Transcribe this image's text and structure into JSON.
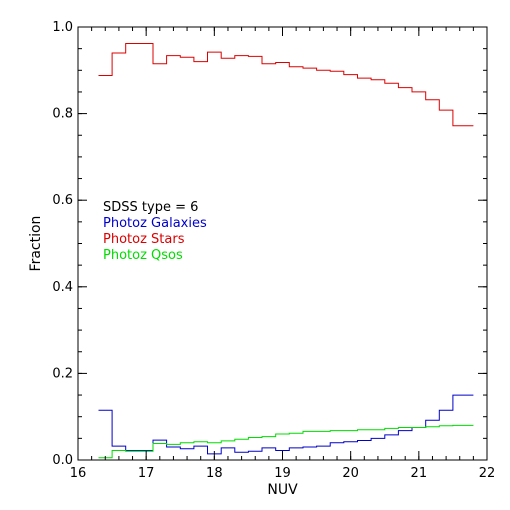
{
  "chart_data": {
    "type": "line",
    "step": true,
    "xlabel": "NUV",
    "ylabel": "Fraction",
    "xlim": [
      16,
      22
    ],
    "ylim": [
      0,
      1
    ],
    "x_ticks": [
      16,
      17,
      18,
      19,
      20,
      21,
      22
    ],
    "x_tick_labels": [
      "16",
      "17",
      "18",
      "19",
      "20",
      "21",
      "22"
    ],
    "y_ticks": [
      0,
      0.2,
      0.4,
      0.6,
      0.8,
      1.0
    ],
    "y_tick_labels": [
      "0.0",
      "0.2",
      "0.4",
      "0.6",
      "0.8",
      "1.0"
    ],
    "bin_edges": [
      16.3,
      16.5,
      16.7,
      16.9,
      17.1,
      17.3,
      17.5,
      17.7,
      17.9,
      18.1,
      18.3,
      18.5,
      18.7,
      18.9,
      19.1,
      19.3,
      19.5,
      19.7,
      19.9,
      20.1,
      20.3,
      20.5,
      20.7,
      20.9,
      21.1,
      21.3,
      21.5,
      21.7,
      21.8
    ],
    "legend_title": "SDSS type = 6",
    "legend_position": "left",
    "series": [
      {
        "name": "Photoz Galaxies",
        "color": "#0000cc",
        "values": [
          0.115,
          0.032,
          0.022,
          0.022,
          0.046,
          0.03,
          0.026,
          0.032,
          0.014,
          0.028,
          0.018,
          0.02,
          0.028,
          0.022,
          0.028,
          0.03,
          0.032,
          0.04,
          0.042,
          0.045,
          0.05,
          0.058,
          0.068,
          0.075,
          0.092,
          0.115,
          0.15,
          0.15
        ]
      },
      {
        "name": "Photoz Stars",
        "color": "#dd0000",
        "values": [
          0.888,
          0.94,
          0.962,
          0.962,
          0.915,
          0.934,
          0.93,
          0.92,
          0.942,
          0.928,
          0.934,
          0.932,
          0.915,
          0.918,
          0.908,
          0.905,
          0.9,
          0.898,
          0.89,
          0.882,
          0.878,
          0.87,
          0.86,
          0.85,
          0.832,
          0.808,
          0.772,
          0.772
        ]
      },
      {
        "name": "Photoz Qsos",
        "color": "#00dd00",
        "values": [
          0.005,
          0.022,
          0.02,
          0.02,
          0.038,
          0.036,
          0.04,
          0.042,
          0.04,
          0.044,
          0.048,
          0.052,
          0.054,
          0.06,
          0.062,
          0.066,
          0.066,
          0.068,
          0.068,
          0.07,
          0.07,
          0.073,
          0.075,
          0.075,
          0.077,
          0.079,
          0.08,
          0.08
        ]
      }
    ]
  }
}
